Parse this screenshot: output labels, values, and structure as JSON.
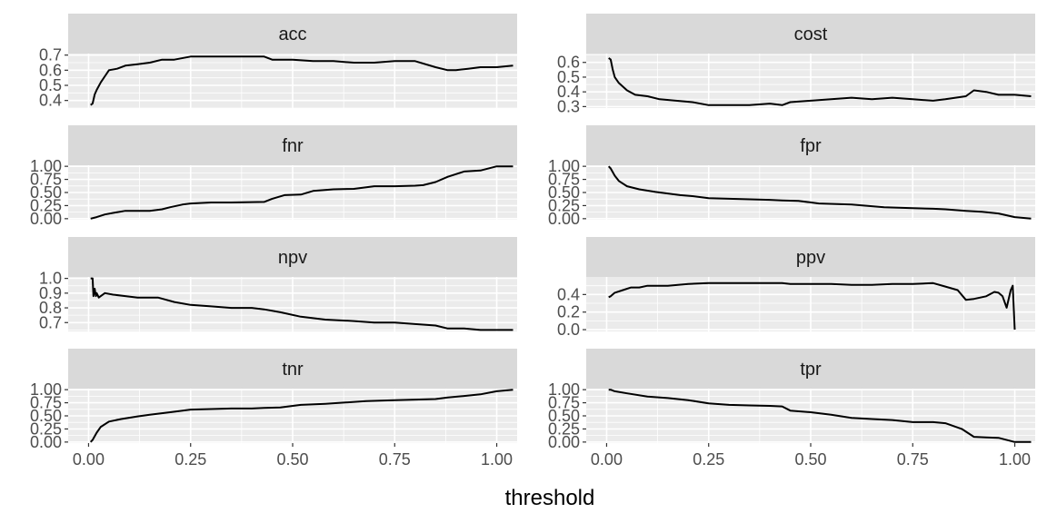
{
  "chart_data": {
    "type": "line",
    "layout": "faceted 4x2",
    "xlabel": "threshold",
    "ylabel": "",
    "xlim": [
      -0.05,
      1.05
    ],
    "x_ticks": [
      0,
      0.25,
      0.5,
      0.75,
      1
    ],
    "x_tick_labels": [
      "0.00",
      "0.25",
      "0.50",
      "0.75",
      "1.00"
    ],
    "grid": true,
    "colors": {
      "panel_bg": "#ebebeb",
      "strip_bg": "#d9d9d9",
      "grid": "#ffffff",
      "line": "#000000"
    },
    "panels": [
      {
        "name": "acc",
        "ylim": [
          0.35,
          0.71
        ],
        "y_ticks": [
          0.4,
          0.5,
          0.6,
          0.7
        ],
        "y_tick_labels": [
          "0.4",
          "0.5",
          "0.6",
          "0.7"
        ],
        "x": [
          0.005,
          0.01,
          0.015,
          0.02,
          0.03,
          0.04,
          0.05,
          0.07,
          0.09,
          0.12,
          0.15,
          0.18,
          0.21,
          0.25,
          0.3,
          0.35,
          0.4,
          0.43,
          0.45,
          0.5,
          0.55,
          0.6,
          0.65,
          0.7,
          0.75,
          0.8,
          0.85,
          0.88,
          0.9,
          0.93,
          0.96,
          1.0,
          1.04
        ],
        "y": [
          0.37,
          0.38,
          0.44,
          0.47,
          0.52,
          0.56,
          0.6,
          0.61,
          0.63,
          0.64,
          0.65,
          0.67,
          0.67,
          0.69,
          0.69,
          0.69,
          0.69,
          0.69,
          0.67,
          0.67,
          0.66,
          0.66,
          0.65,
          0.65,
          0.66,
          0.66,
          0.62,
          0.6,
          0.6,
          0.61,
          0.62,
          0.62,
          0.63
        ]
      },
      {
        "name": "cost",
        "ylim": [
          0.29,
          0.66
        ],
        "y_ticks": [
          0.3,
          0.4,
          0.5,
          0.6
        ],
        "y_tick_labels": [
          "0.3",
          "0.4",
          "0.5",
          "0.6"
        ],
        "x": [
          0.005,
          0.01,
          0.015,
          0.02,
          0.03,
          0.05,
          0.07,
          0.1,
          0.13,
          0.17,
          0.21,
          0.25,
          0.3,
          0.35,
          0.4,
          0.43,
          0.45,
          0.5,
          0.55,
          0.6,
          0.65,
          0.7,
          0.75,
          0.8,
          0.83,
          0.88,
          0.9,
          0.93,
          0.96,
          1.0,
          1.04
        ],
        "y": [
          0.63,
          0.62,
          0.55,
          0.5,
          0.46,
          0.41,
          0.38,
          0.37,
          0.35,
          0.34,
          0.33,
          0.31,
          0.31,
          0.31,
          0.32,
          0.31,
          0.33,
          0.34,
          0.35,
          0.36,
          0.35,
          0.36,
          0.35,
          0.34,
          0.35,
          0.37,
          0.41,
          0.4,
          0.38,
          0.38,
          0.37
        ]
      },
      {
        "name": "fnr",
        "ylim": [
          -0.02,
          1.02
        ],
        "y_ticks": [
          0,
          0.25,
          0.5,
          0.75,
          1
        ],
        "y_tick_labels": [
          "0.00",
          "0.25",
          "0.50",
          "0.75",
          "1.00"
        ],
        "x": [
          0.005,
          0.02,
          0.04,
          0.06,
          0.09,
          0.15,
          0.18,
          0.2,
          0.23,
          0.25,
          0.3,
          0.35,
          0.43,
          0.45,
          0.48,
          0.52,
          0.55,
          0.6,
          0.65,
          0.7,
          0.75,
          0.8,
          0.82,
          0.85,
          0.88,
          0.92,
          0.96,
          1.0,
          1.04
        ],
        "y": [
          0.0,
          0.03,
          0.08,
          0.11,
          0.15,
          0.15,
          0.18,
          0.22,
          0.27,
          0.29,
          0.31,
          0.31,
          0.32,
          0.38,
          0.45,
          0.46,
          0.53,
          0.56,
          0.57,
          0.62,
          0.62,
          0.63,
          0.64,
          0.7,
          0.8,
          0.9,
          0.92,
          1.0,
          1.0
        ]
      },
      {
        "name": "fpr",
        "ylim": [
          -0.02,
          1.02
        ],
        "y_ticks": [
          0,
          0.25,
          0.5,
          0.75,
          1
        ],
        "y_tick_labels": [
          "0.00",
          "0.25",
          "0.50",
          "0.75",
          "1.00"
        ],
        "x": [
          0.005,
          0.01,
          0.02,
          0.03,
          0.05,
          0.08,
          0.12,
          0.18,
          0.21,
          0.25,
          0.3,
          0.35,
          0.4,
          0.43,
          0.47,
          0.52,
          0.6,
          0.68,
          0.75,
          0.8,
          0.83,
          0.88,
          0.92,
          0.96,
          1.0,
          1.04
        ],
        "y": [
          1.0,
          0.96,
          0.82,
          0.72,
          0.62,
          0.56,
          0.51,
          0.45,
          0.43,
          0.39,
          0.38,
          0.37,
          0.36,
          0.35,
          0.34,
          0.29,
          0.27,
          0.22,
          0.2,
          0.19,
          0.18,
          0.15,
          0.13,
          0.1,
          0.03,
          0.0
        ]
      },
      {
        "name": "npv",
        "ylim": [
          0.64,
          1.01
        ],
        "y_ticks": [
          0.7,
          0.8,
          0.9,
          1.0
        ],
        "y_tick_labels": [
          "0.7",
          "0.8",
          "0.9",
          "1.0"
        ],
        "x": [
          0.005,
          0.01,
          0.012,
          0.015,
          0.018,
          0.02,
          0.025,
          0.03,
          0.04,
          0.06,
          0.09,
          0.12,
          0.17,
          0.21,
          0.25,
          0.3,
          0.35,
          0.4,
          0.43,
          0.47,
          0.52,
          0.58,
          0.65,
          0.7,
          0.75,
          0.8,
          0.85,
          0.88,
          0.92,
          0.96,
          1.0,
          1.04
        ],
        "y": [
          1.0,
          1.0,
          0.88,
          0.93,
          0.88,
          0.9,
          0.87,
          0.88,
          0.9,
          0.89,
          0.88,
          0.87,
          0.87,
          0.84,
          0.82,
          0.81,
          0.8,
          0.8,
          0.79,
          0.77,
          0.74,
          0.72,
          0.71,
          0.7,
          0.7,
          0.69,
          0.68,
          0.66,
          0.66,
          0.65,
          0.65,
          0.65
        ]
      },
      {
        "name": "ppv",
        "ylim": [
          -0.02,
          0.6
        ],
        "y_ticks": [
          0,
          0.2,
          0.4
        ],
        "y_tick_labels": [
          "0.0",
          "0.2",
          "0.4"
        ],
        "x": [
          0.005,
          0.01,
          0.02,
          0.04,
          0.06,
          0.08,
          0.1,
          0.15,
          0.2,
          0.25,
          0.3,
          0.35,
          0.4,
          0.43,
          0.45,
          0.5,
          0.55,
          0.6,
          0.65,
          0.7,
          0.75,
          0.8,
          0.83,
          0.86,
          0.88,
          0.9,
          0.93,
          0.95,
          0.96,
          0.97,
          0.98,
          0.99,
          0.995,
          1.0
        ],
        "y": [
          0.37,
          0.38,
          0.42,
          0.45,
          0.48,
          0.48,
          0.5,
          0.5,
          0.52,
          0.53,
          0.53,
          0.53,
          0.53,
          0.53,
          0.52,
          0.52,
          0.52,
          0.51,
          0.51,
          0.52,
          0.52,
          0.53,
          0.49,
          0.45,
          0.34,
          0.35,
          0.38,
          0.43,
          0.42,
          0.38,
          0.25,
          0.45,
          0.5,
          0.0
        ]
      },
      {
        "name": "tnr",
        "ylim": [
          -0.02,
          1.02
        ],
        "y_ticks": [
          0,
          0.25,
          0.5,
          0.75,
          1
        ],
        "y_tick_labels": [
          "0.00",
          "0.25",
          "0.50",
          "0.75",
          "1.00"
        ],
        "x": [
          0.005,
          0.01,
          0.02,
          0.03,
          0.05,
          0.08,
          0.12,
          0.15,
          0.2,
          0.25,
          0.3,
          0.35,
          0.4,
          0.43,
          0.47,
          0.52,
          0.58,
          0.68,
          0.75,
          0.8,
          0.85,
          0.88,
          0.92,
          0.96,
          1.0,
          1.04
        ],
        "y": [
          0.0,
          0.04,
          0.18,
          0.29,
          0.39,
          0.44,
          0.49,
          0.52,
          0.57,
          0.62,
          0.63,
          0.64,
          0.64,
          0.65,
          0.66,
          0.71,
          0.73,
          0.78,
          0.8,
          0.81,
          0.82,
          0.85,
          0.88,
          0.91,
          0.97,
          1.0
        ]
      },
      {
        "name": "tpr",
        "ylim": [
          -0.02,
          1.02
        ],
        "y_ticks": [
          0,
          0.25,
          0.5,
          0.75,
          1
        ],
        "y_tick_labels": [
          "0.00",
          "0.25",
          "0.50",
          "0.75",
          "1.00"
        ],
        "x": [
          0.005,
          0.01,
          0.02,
          0.05,
          0.1,
          0.15,
          0.2,
          0.25,
          0.3,
          0.35,
          0.4,
          0.43,
          0.45,
          0.5,
          0.55,
          0.6,
          0.65,
          0.7,
          0.75,
          0.8,
          0.83,
          0.87,
          0.9,
          0.93,
          0.96,
          1.0,
          1.04
        ],
        "y": [
          1.0,
          1.0,
          0.97,
          0.93,
          0.87,
          0.84,
          0.8,
          0.74,
          0.71,
          0.7,
          0.69,
          0.68,
          0.6,
          0.57,
          0.52,
          0.46,
          0.44,
          0.42,
          0.38,
          0.38,
          0.36,
          0.25,
          0.1,
          0.09,
          0.08,
          0.0,
          0.0
        ]
      }
    ]
  }
}
